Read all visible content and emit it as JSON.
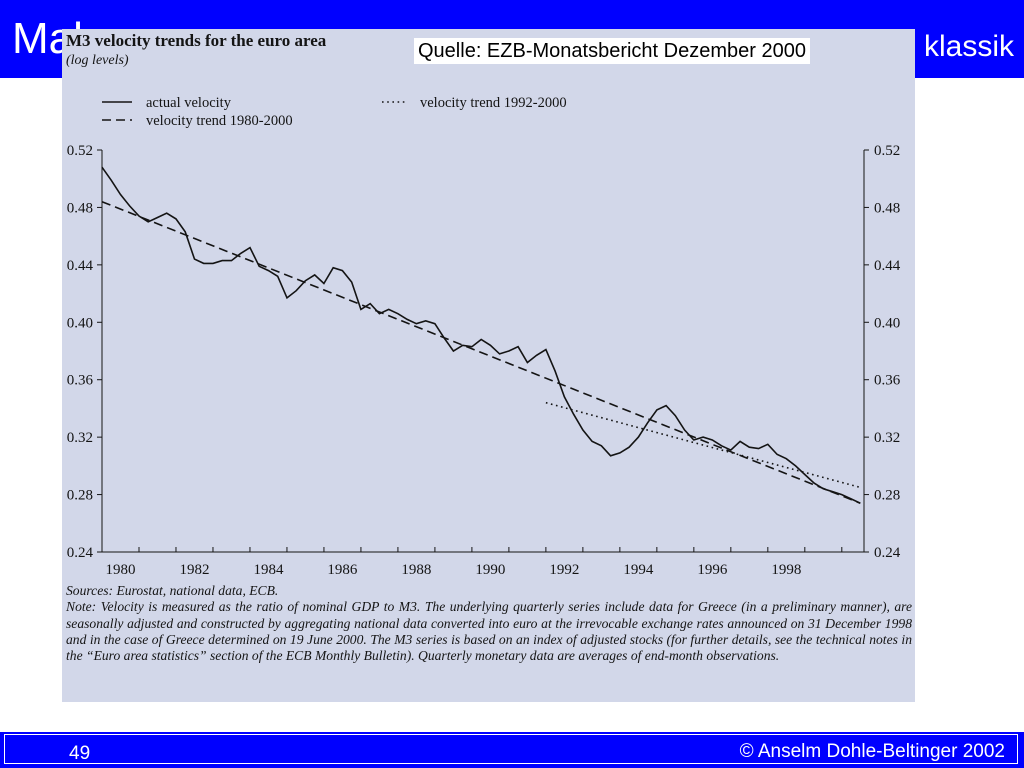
{
  "slide": {
    "title_left": "Mak",
    "title_right": "klassik",
    "page_number": "49",
    "copyright": "© Anselm Dohle-Beltinger 2002",
    "accent_color": "#0000ff",
    "figure_background": "#d2d7e9"
  },
  "figure": {
    "source_label": "Quelle: EZB-Monatsbericht Dezember 2000",
    "notes": [
      "Sources: Eurostat, national data, ECB.",
      "Note: Velocity is measured as the ratio of nominal GDP to M3. The underlying quarterly series include data for Greece (in a preliminary manner), are seasonally adjusted and constructed by aggregating national data converted into euro at the irrevocable exchange rates announced on 31 December 1998 and in the case of Greece determined on 19 June 2000. The M3 series is based on an index of adjusted stocks (for further details, see the technical notes in the “Euro area statistics” section of the ECB Monthly Bulletin). Quarterly monetary data are averages of end-month observations."
    ]
  },
  "chart_data": {
    "type": "line",
    "title": "M3 velocity trends for the euro area",
    "subtitle": "(log levels)",
    "xlabel": "",
    "ylabel": "",
    "xlim": [
      1980,
      2000.6
    ],
    "ylim": [
      0.24,
      0.52
    ],
    "x_ticks": [
      1980,
      1982,
      1984,
      1986,
      1988,
      1990,
      1992,
      1994,
      1996,
      1998
    ],
    "y_ticks": [
      0.24,
      0.28,
      0.32,
      0.36,
      0.4,
      0.44,
      0.48,
      0.52
    ],
    "y_tick_labels": [
      "0.24",
      "0.28",
      "0.32",
      "0.36",
      "0.40",
      "0.44",
      "0.48",
      "0.52"
    ],
    "grid": false,
    "secondary_y_axis": true,
    "legend_placement": "top",
    "series": [
      {
        "name": "actual velocity",
        "style": "solid",
        "x": [
          1980.0,
          1980.25,
          1980.5,
          1980.75,
          1981.0,
          1981.25,
          1981.5,
          1981.75,
          1982.0,
          1982.25,
          1982.5,
          1982.75,
          1983.0,
          1983.25,
          1983.5,
          1983.75,
          1984.0,
          1984.25,
          1984.5,
          1984.75,
          1985.0,
          1985.25,
          1985.5,
          1985.75,
          1986.0,
          1986.25,
          1986.5,
          1986.75,
          1987.0,
          1987.25,
          1987.5,
          1987.75,
          1988.0,
          1988.25,
          1988.5,
          1988.75,
          1989.0,
          1989.25,
          1989.5,
          1989.75,
          1990.0,
          1990.25,
          1990.5,
          1990.75,
          1991.0,
          1991.25,
          1991.5,
          1991.75,
          1992.0,
          1992.25,
          1992.5,
          1992.75,
          1993.0,
          1993.25,
          1993.5,
          1993.75,
          1994.0,
          1994.25,
          1994.5,
          1994.75,
          1995.0,
          1995.25,
          1995.5,
          1995.75,
          1996.0,
          1996.25,
          1996.5,
          1996.75,
          1997.0,
          1997.25,
          1997.5,
          1997.75,
          1998.0,
          1998.25,
          1998.5,
          1998.75,
          1999.0,
          1999.25,
          1999.5,
          1999.75,
          2000.0,
          2000.25,
          2000.5
        ],
        "values": [
          0.508,
          0.499,
          0.489,
          0.481,
          0.474,
          0.47,
          0.473,
          0.476,
          0.472,
          0.463,
          0.444,
          0.441,
          0.441,
          0.443,
          0.443,
          0.448,
          0.452,
          0.439,
          0.436,
          0.432,
          0.417,
          0.422,
          0.429,
          0.433,
          0.427,
          0.438,
          0.436,
          0.428,
          0.409,
          0.413,
          0.406,
          0.409,
          0.406,
          0.402,
          0.399,
          0.401,
          0.399,
          0.389,
          0.38,
          0.384,
          0.383,
          0.388,
          0.384,
          0.378,
          0.38,
          0.383,
          0.372,
          0.377,
          0.381,
          0.366,
          0.348,
          0.336,
          0.325,
          0.317,
          0.314,
          0.307,
          0.309,
          0.313,
          0.32,
          0.33,
          0.339,
          0.342,
          0.335,
          0.325,
          0.318,
          0.32,
          0.318,
          0.314,
          0.311,
          0.317,
          0.313,
          0.312,
          0.315,
          0.308,
          0.305,
          0.3,
          0.294,
          0.288,
          0.284,
          0.282,
          0.28,
          0.277,
          0.274
        ]
      },
      {
        "name": "velocity trend 1980-2000",
        "style": "dashed",
        "x": [
          1980.0,
          2000.5
        ],
        "values": [
          0.484,
          0.274
        ]
      },
      {
        "name": "velocity trend 1992-2000",
        "style": "dotted",
        "x": [
          1992.0,
          2000.5
        ],
        "values": [
          0.344,
          0.285
        ]
      }
    ]
  }
}
